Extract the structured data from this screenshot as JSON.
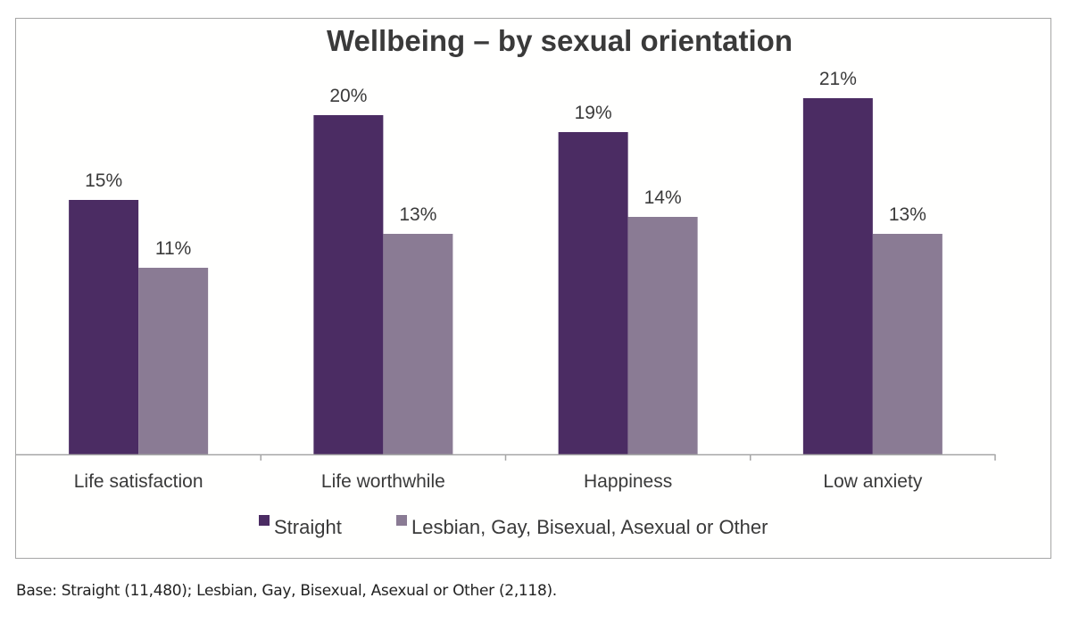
{
  "chart_data": {
    "type": "bar",
    "title": "Wellbeing – by sexual orientation",
    "categories": [
      "Life satisfaction",
      "Life worthwhile",
      "Happiness",
      "Low anxiety"
    ],
    "series": [
      {
        "name": "Straight",
        "color": "#4b2c63",
        "values": [
          15,
          20,
          19,
          21
        ],
        "labels": [
          "15%",
          "20%",
          "19%",
          "21%"
        ]
      },
      {
        "name": "Lesbian, Gay, Bisexual, Asexual or Other",
        "color": "#8a7b94",
        "values": [
          11,
          13,
          14,
          13
        ],
        "labels": [
          "11%",
          "13%",
          "14%",
          "13%"
        ]
      }
    ],
    "xlabel": "",
    "ylabel": "",
    "ylim": [
      0,
      21
    ],
    "y_unit": "%",
    "grid": false,
    "legend_position": "bottom",
    "y_axis_visible": false
  },
  "footnote": "Base: Straight (11,480); Lesbian, Gay, Bisexual, Asexual or Other (2,118)."
}
